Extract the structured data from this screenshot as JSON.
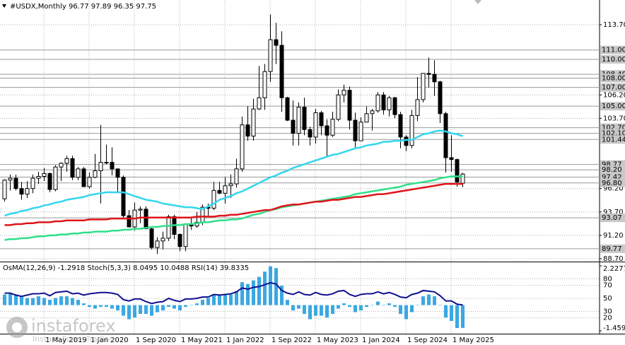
{
  "chart_data": [
    {
      "type": "candlestick",
      "title": "#USDX,Monthly 96.77 97.89 96.35 97.75",
      "categories": [
        null,
        null,
        null,
        null,
        null,
        null,
        null,
        "1 May 2019",
        null,
        null,
        null,
        null,
        null,
        null,
        null,
        "1 Jan 2020",
        null,
        null,
        null,
        null,
        null,
        null,
        null,
        "1 Sep 2020",
        null,
        null,
        null,
        null,
        null,
        null,
        null,
        "1 May 2021",
        null,
        null,
        null,
        null,
        null,
        null,
        null,
        "1 Jan 2022",
        null,
        null,
        null,
        null,
        null,
        null,
        null,
        "1 Sep 2022",
        null,
        null,
        null,
        null,
        null,
        null,
        null,
        "1 May 2023",
        null,
        null,
        null,
        null,
        null,
        null,
        null,
        "1 Jan 2024",
        null,
        null,
        null,
        null,
        null,
        null,
        null,
        "1 Sep 2024",
        null,
        null,
        null,
        null,
        null,
        null,
        null,
        "1 May 2025",
        null,
        null
      ],
      "open": [
        95.1,
        97.1,
        97.3,
        96.2,
        95.6,
        96.2,
        97.3,
        97.5,
        97.8,
        96.1,
        98.5,
        98.9,
        99.4,
        97.4,
        98.3,
        96.4,
        97.4,
        98.1,
        99.0,
        99.0,
        98.3,
        97.4,
        93.3,
        92.1,
        93.9,
        94.0,
        91.9,
        89.9,
        90.6,
        90.9,
        93.2,
        91.3,
        90.0,
        92.4,
        92.2,
        92.6,
        94.2,
        94.1,
        96.0,
        95.7,
        96.5,
        96.7,
        98.3,
        103.0,
        101.8,
        104.7,
        105.9,
        108.7,
        112.1,
        111.5,
        105.9,
        103.5,
        102.1,
        104.9,
        102.5,
        101.7,
        104.3,
        102.9,
        101.9,
        103.6,
        106.2,
        106.7,
        103.5,
        101.3,
        103.3,
        104.2,
        104.5,
        106.2,
        104.6,
        105.9,
        104.1,
        101.7,
        100.8,
        104.0,
        105.7,
        108.5,
        108.4,
        107.6,
        104.2,
        99.5,
        99.3,
        96.77
      ],
      "high": [
        97.2,
        97.7,
        97.7,
        96.9,
        97.0,
        97.7,
        98.0,
        98.4,
        97.9,
        98.7,
        99.0,
        99.7,
        99.7,
        98.5,
        98.5,
        97.9,
        99.9,
        102.99,
        100.9,
        100.6,
        98.3,
        97.6,
        93.9,
        94.7,
        94.3,
        94.3,
        92.0,
        91.0,
        91.6,
        93.4,
        93.4,
        91.4,
        92.4,
        93.2,
        93.7,
        94.5,
        94.6,
        96.9,
        96.9,
        97.4,
        97.7,
        99.4,
        103.9,
        105.0,
        105.8,
        109.3,
        109.5,
        114.8,
        113.9,
        113.0,
        106.0,
        105.6,
        105.4,
        105.9,
        102.8,
        104.7,
        104.5,
        103.6,
        104.4,
        106.8,
        107.3,
        107.1,
        104.3,
        103.8,
        104.97,
        104.7,
        106.5,
        106.5,
        106.1,
        106.0,
        104.4,
        101.9,
        104.6,
        108.1,
        108.5,
        110.2,
        109.9,
        107.7,
        104.4,
        101.9,
        99.4,
        97.89
      ],
      "low": [
        94.8,
        96.0,
        96.0,
        95.0,
        95.2,
        95.7,
        96.7,
        97.0,
        95.8,
        95.9,
        97.0,
        98.0,
        97.1,
        97.1,
        96.4,
        96.2,
        97.3,
        94.6,
        98.8,
        97.6,
        95.7,
        92.9,
        92.1,
        91.7,
        92.5,
        91.9,
        89.7,
        89.2,
        89.7,
        90.6,
        90.8,
        89.5,
        89.5,
        91.8,
        92.0,
        92.3,
        93.3,
        93.9,
        95.6,
        94.6,
        95.2,
        96.3,
        98.0,
        101.3,
        101.3,
        104.6,
        104.6,
        107.6,
        109.5,
        104.4,
        103.4,
        100.8,
        100.8,
        101.9,
        100.8,
        101.0,
        101.9,
        99.6,
        101.7,
        103.4,
        105.4,
        102.5,
        100.6,
        101.3,
        103.3,
        102.4,
        104.3,
        104.1,
        103.9,
        103.7,
        100.5,
        100.2,
        100.5,
        103.4,
        105.4,
        107.0,
        106.1,
        103.2,
        97.9,
        98.0,
        96.4,
        96.35
      ],
      "close": [
        97.1,
        97.3,
        96.2,
        95.6,
        96.2,
        97.3,
        97.5,
        97.8,
        96.1,
        98.5,
        98.9,
        99.4,
        97.4,
        98.3,
        96.4,
        97.4,
        98.1,
        99.0,
        99.0,
        98.3,
        97.4,
        93.3,
        92.1,
        93.9,
        94.0,
        91.9,
        89.9,
        90.6,
        90.9,
        93.2,
        91.3,
        90.0,
        92.4,
        92.2,
        92.6,
        94.2,
        94.1,
        96.0,
        95.7,
        96.5,
        96.7,
        98.3,
        103.0,
        101.8,
        104.7,
        105.9,
        108.7,
        112.1,
        111.5,
        105.9,
        103.5,
        102.1,
        104.9,
        102.5,
        101.7,
        104.3,
        102.9,
        101.9,
        103.6,
        106.2,
        106.7,
        103.5,
        101.3,
        103.3,
        104.2,
        104.5,
        106.2,
        104.6,
        105.9,
        104.1,
        101.7,
        100.8,
        104.0,
        105.7,
        108.5,
        108.4,
        107.6,
        104.2,
        99.5,
        99.3,
        96.9,
        97.75
      ],
      "lines": [
        {
          "color": "#33d6f0",
          "values": [
            93.3,
            93.5,
            93.6,
            93.8,
            93.9,
            94.1,
            94.2,
            94.4,
            94.5,
            94.7,
            94.8,
            95.0,
            95.1,
            95.2,
            95.3,
            95.5,
            95.6,
            95.7,
            95.8,
            95.8,
            95.8,
            95.8,
            95.6,
            95.4,
            95.2,
            95.0,
            94.9,
            94.8,
            94.6,
            94.5,
            94.4,
            94.3,
            94.2,
            94.2,
            94.1,
            94.0,
            94.3,
            94.6,
            95.0,
            95.2,
            95.4,
            95.7,
            95.9,
            96.2,
            96.5,
            96.8,
            97.1,
            97.4,
            97.6,
            97.9,
            98.1,
            98.4,
            98.6,
            98.8,
            99.0,
            99.2,
            99.4,
            99.6,
            99.8,
            99.9,
            100.1,
            100.3,
            100.5,
            100.6,
            100.8,
            100.9,
            101.0,
            101.2,
            101.2,
            101.3,
            101.3,
            101.4,
            101.4,
            101.7,
            102.0,
            102.1,
            102.3,
            102.4,
            102.3,
            102.1,
            102.0,
            101.8
          ]
        },
        {
          "color": "#2ee08a",
          "values": [
            90.7,
            90.8,
            90.8,
            90.9,
            90.9,
            91.0,
            91.1,
            91.1,
            91.2,
            91.2,
            91.3,
            91.3,
            91.4,
            91.4,
            91.5,
            91.5,
            91.6,
            91.6,
            91.6,
            91.7,
            91.7,
            91.8,
            91.8,
            91.9,
            91.9,
            92.0,
            92.1,
            92.1,
            92.2,
            92.2,
            92.3,
            92.3,
            92.4,
            92.4,
            92.5,
            92.6,
            92.6,
            92.7,
            92.8,
            92.8,
            92.9,
            92.9,
            93.0,
            93.2,
            93.4,
            93.5,
            93.7,
            93.9,
            94.0,
            94.2,
            94.3,
            94.4,
            94.5,
            94.6,
            94.7,
            94.8,
            94.9,
            95.0,
            95.1,
            95.2,
            95.3,
            95.4,
            95.6,
            95.7,
            95.8,
            95.9,
            96.0,
            96.1,
            96.2,
            96.3,
            96.4,
            96.6,
            96.7,
            96.8,
            96.9,
            97.0,
            97.1,
            97.3,
            97.4,
            97.5,
            97.5,
            97.5
          ]
        },
        {
          "color": "#e0141a",
          "values": [
            92.3,
            92.3,
            92.4,
            92.4,
            92.5,
            92.5,
            92.6,
            92.6,
            92.6,
            92.7,
            92.7,
            92.8,
            92.8,
            92.8,
            92.8,
            92.9,
            92.9,
            92.9,
            92.9,
            93.0,
            93.0,
            93.0,
            93.0,
            93.0,
            93.1,
            93.1,
            93.1,
            93.1,
            93.1,
            93.1,
            93.1,
            93.1,
            93.1,
            93.1,
            93.2,
            93.2,
            93.2,
            93.2,
            93.3,
            93.3,
            93.4,
            93.4,
            93.5,
            93.6,
            93.7,
            93.8,
            93.9,
            93.9,
            94.1,
            94.3,
            94.4,
            94.5,
            94.5,
            94.6,
            94.7,
            94.8,
            94.8,
            94.9,
            95.0,
            95.0,
            95.1,
            95.2,
            95.3,
            95.3,
            95.4,
            95.5,
            95.6,
            95.6,
            95.7,
            95.8,
            95.9,
            96.0,
            96.1,
            96.2,
            96.3,
            96.4,
            96.5,
            96.6,
            96.7,
            96.7,
            96.7,
            96.7
          ]
        }
      ],
      "ylim": [
        88.55,
        116.34
      ],
      "yticks": [
        {
          "value": 113.7,
          "label": "113.70"
        },
        {
          "value": 106.2,
          "label": "106.20"
        },
        {
          "value": 103.7,
          "label": "103.70"
        },
        {
          "value": 96.2,
          "label": "96.20"
        },
        {
          "value": 93.7,
          "label": "93.70"
        },
        {
          "value": 91.2,
          "label": "91.20"
        },
        {
          "value": 88.7,
          "label": "88.70"
        }
      ],
      "levels": [
        {
          "value": 111,
          "label": "111.00"
        },
        {
          "value": 110,
          "label": "110.00"
        },
        {
          "value": 108.4,
          "label": "108.40"
        },
        {
          "value": 108,
          "label": "108.00"
        },
        {
          "value": 107,
          "label": "107.00"
        },
        {
          "value": 105,
          "label": "105.00"
        },
        {
          "value": 102.7,
          "label": "102.70"
        },
        {
          "value": 102.1,
          "label": "102.10"
        },
        {
          "value": 101.44,
          "label": "101.44"
        },
        {
          "value": 98.77,
          "label": "98.77"
        },
        {
          "value": 98.2,
          "label": "98.20"
        },
        {
          "value": 97.42,
          "label": "97.42"
        },
        {
          "value": 96.8,
          "label": "96.80"
        },
        {
          "value": 93.07,
          "label": "93.07"
        },
        {
          "value": 89.77,
          "label": "89.77"
        }
      ],
      "grid": true
    },
    {
      "type": "oscillator",
      "title": "OsMA(12,26,9) -1.2918 Stoch(5,3,3) 8.0495 10.0488 RSI(14) 39.8335",
      "values": [
        0.6,
        0.7,
        0.6,
        0.5,
        0.4,
        0.4,
        0.5,
        0.4,
        0.3,
        0.4,
        0.5,
        0.5,
        0.4,
        0.3,
        0.1,
        -0.1,
        -0.2,
        -0.1,
        -0.1,
        -0.2,
        -0.3,
        -0.6,
        -0.8,
        -0.7,
        -0.5,
        -0.5,
        -0.6,
        -0.4,
        -0.3,
        -0.1,
        -0.2,
        -0.3,
        -0.1,
        0.0,
        0.1,
        0.3,
        0.4,
        0.6,
        0.6,
        0.6,
        0.6,
        0.8,
        1.3,
        1.2,
        1.4,
        1.6,
        1.9,
        2.2,
        2.1,
        1.1,
        0.3,
        -0.3,
        -0.2,
        -0.5,
        -0.8,
        -0.6,
        -0.6,
        -0.7,
        -0.5,
        -0.2,
        0.1,
        -0.1,
        -0.4,
        -0.3,
        -0.1,
        0.0,
        0.2,
        0.0,
        0.1,
        -0.1,
        -0.5,
        -0.8,
        -0.4,
        0.0,
        0.5,
        0.6,
        0.5,
        0.0,
        -0.7,
        -0.9,
        -1.3,
        -1.2918
      ],
      "color": "#3aa8e2",
      "ylim": [
        -1.4594,
        2.2277
      ],
      "yticks": [
        2.2277,
        -1.4594
      ],
      "series": [
        {
          "color": "#101090",
          "axis": "y2",
          "values": [
            58,
            58,
            55,
            53,
            55,
            57,
            57,
            58,
            54,
            59,
            60,
            61,
            57,
            58,
            55,
            57,
            58,
            59,
            59,
            58,
            56,
            48,
            46,
            49,
            49,
            45,
            42,
            44,
            45,
            50,
            47,
            45,
            49,
            49,
            50,
            52,
            52,
            56,
            55,
            56,
            57,
            60,
            66,
            64,
            67,
            68,
            71,
            74,
            72,
            62,
            58,
            56,
            60,
            56,
            55,
            59,
            56,
            55,
            57,
            61,
            62,
            56,
            53,
            56,
            57,
            57,
            60,
            57,
            59,
            56,
            52,
            51,
            56,
            58,
            62,
            61,
            60,
            54,
            46,
            46,
            41,
            39.8335
          ]
        }
      ],
      "y2lim": [
        0,
        100
      ],
      "y2ticks": [
        80,
        70,
        50,
        30,
        20
      ]
    }
  ],
  "watermark": {
    "brand": "instaforex",
    "tagline": "Instant Forex Trading"
  }
}
